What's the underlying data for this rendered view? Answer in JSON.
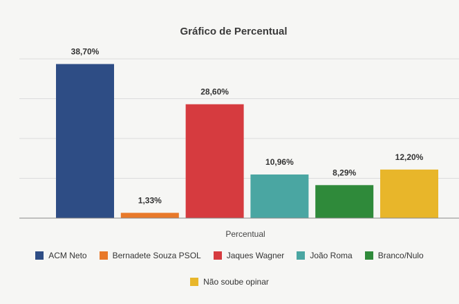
{
  "chart_data": {
    "type": "bar",
    "title": "Gráfico de Percentual",
    "xlabel": "Percentual",
    "ylabel": "",
    "ylim": [
      0,
      40
    ],
    "grid": true,
    "legend_position": "bottom",
    "series": [
      {
        "name": "ACM Neto",
        "value": 38.7,
        "label": "38,70%",
        "color": "#2e4d85"
      },
      {
        "name": "Bernadete Souza PSOL",
        "value": 1.33,
        "label": "1,33%",
        "color": "#e8792a"
      },
      {
        "name": "Jaques Wagner",
        "value": 28.6,
        "label": "28,60%",
        "color": "#d63b3f"
      },
      {
        "name": "João Roma",
        "value": 10.96,
        "label": "10,96%",
        "color": "#4aa6a2"
      },
      {
        "name": "Branco/Nulo",
        "value": 8.29,
        "label": "8,29%",
        "color": "#2f8a3a"
      },
      {
        "name": "Não soube opinar",
        "value": 12.2,
        "label": "12,20%",
        "color": "#e8b62a"
      }
    ]
  }
}
